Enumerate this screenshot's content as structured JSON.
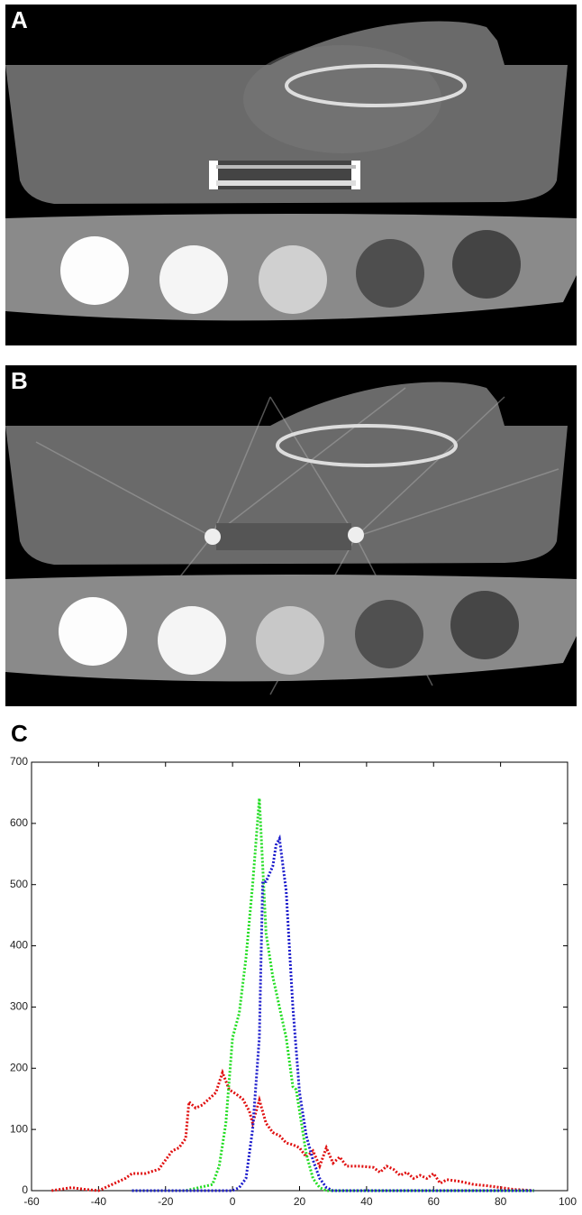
{
  "panels": [
    {
      "label": "A"
    },
    {
      "label": "B"
    }
  ],
  "chart_data": {
    "type": "line",
    "title": "C",
    "xlim": [
      -60,
      100
    ],
    "xticks": [
      -60,
      -40,
      -20,
      0,
      20,
      40,
      60,
      80,
      100
    ],
    "ylim": [
      0,
      700
    ],
    "yticks": [
      0,
      100,
      200,
      300,
      400,
      500,
      600,
      700
    ],
    "series": [
      {
        "color": "#e01010",
        "x": [
          -54,
          -48,
          -44,
          -40,
          -36,
          -32,
          -30,
          -26,
          -22,
          -20,
          -18,
          -16,
          -14,
          -13,
          -11,
          -9,
          -7,
          -5,
          -3,
          -1,
          1,
          3,
          5,
          6,
          8,
          10,
          12,
          14,
          16,
          18,
          20,
          22,
          24,
          26,
          28,
          30,
          32,
          34,
          38,
          42,
          44,
          46,
          48,
          50,
          52,
          54,
          56,
          58,
          60,
          62,
          64,
          68,
          72,
          76,
          80,
          84,
          90
        ],
        "values": [
          0,
          5,
          2,
          0,
          10,
          20,
          28,
          28,
          35,
          50,
          65,
          70,
          85,
          145,
          135,
          140,
          150,
          160,
          193,
          165,
          158,
          150,
          130,
          110,
          148,
          110,
          95,
          90,
          78,
          75,
          70,
          55,
          65,
          40,
          70,
          45,
          55,
          40,
          40,
          38,
          30,
          40,
          35,
          25,
          30,
          20,
          25,
          20,
          28,
          12,
          18,
          15,
          10,
          8,
          5,
          2,
          0
        ]
      },
      {
        "color": "#22dd22",
        "x": [
          -30,
          -14,
          -10,
          -6,
          -4,
          -2,
          0,
          2,
          4,
          6,
          8,
          10,
          12,
          14,
          16,
          18,
          19,
          20,
          22,
          24,
          26,
          28,
          40,
          90
        ],
        "values": [
          0,
          0,
          5,
          10,
          40,
          110,
          250,
          290,
          380,
          500,
          641,
          420,
          350,
          300,
          250,
          170,
          165,
          130,
          60,
          20,
          5,
          0,
          0,
          0
        ]
      },
      {
        "color": "#1a1acc",
        "x": [
          -30,
          0,
          2,
          4,
          6,
          8,
          9,
          10,
          12,
          13,
          14,
          16,
          18,
          20,
          22,
          24,
          26,
          28,
          30,
          90
        ],
        "values": [
          0,
          0,
          5,
          20,
          100,
          250,
          505,
          505,
          530,
          565,
          575,
          490,
          300,
          160,
          90,
          50,
          20,
          5,
          0,
          0
        ]
      }
    ]
  }
}
